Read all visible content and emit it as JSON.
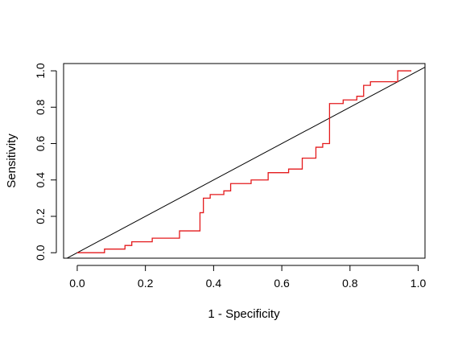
{
  "chart_data": {
    "type": "line",
    "title": "",
    "xlabel": "1 - Specificity",
    "ylabel": "Sensitivity",
    "xlim": [
      -0.04,
      1.02
    ],
    "ylim": [
      -0.03,
      1.04
    ],
    "x_ticks": [
      {
        "value": 0.0,
        "label": "0.0"
      },
      {
        "value": 0.2,
        "label": "0.2"
      },
      {
        "value": 0.4,
        "label": "0.4"
      },
      {
        "value": 0.6,
        "label": "0.6"
      },
      {
        "value": 0.8,
        "label": "0.8"
      },
      {
        "value": 1.0,
        "label": "1.0"
      }
    ],
    "y_ticks": [
      {
        "value": 0.0,
        "label": "0.0"
      },
      {
        "value": 0.2,
        "label": "0.2"
      },
      {
        "value": 0.4,
        "label": "0.4"
      },
      {
        "value": 0.6,
        "label": "0.6"
      },
      {
        "value": 0.8,
        "label": "0.8"
      },
      {
        "value": 1.0,
        "label": "1.0"
      }
    ],
    "grid": false,
    "series": [
      {
        "color": "#e41a1c",
        "style": "step",
        "x": [
          0.0,
          0.08,
          0.08,
          0.14,
          0.14,
          0.16,
          0.16,
          0.22,
          0.22,
          0.3,
          0.3,
          0.36,
          0.36,
          0.37,
          0.37,
          0.39,
          0.39,
          0.43,
          0.43,
          0.45,
          0.45,
          0.51,
          0.51,
          0.56,
          0.56,
          0.62,
          0.62,
          0.66,
          0.66,
          0.7,
          0.7,
          0.72,
          0.72,
          0.74,
          0.74,
          0.78,
          0.78,
          0.82,
          0.82,
          0.84,
          0.84,
          0.86,
          0.86,
          0.94,
          0.94,
          0.98
        ],
        "y": [
          0.0,
          0.0,
          0.02,
          0.02,
          0.04,
          0.04,
          0.06,
          0.06,
          0.08,
          0.08,
          0.12,
          0.12,
          0.22,
          0.22,
          0.3,
          0.3,
          0.32,
          0.32,
          0.34,
          0.34,
          0.38,
          0.38,
          0.4,
          0.4,
          0.44,
          0.44,
          0.46,
          0.46,
          0.52,
          0.52,
          0.58,
          0.58,
          0.6,
          0.6,
          0.82,
          0.82,
          0.84,
          0.84,
          0.86,
          0.86,
          0.92,
          0.92,
          0.94,
          0.94,
          1.0,
          1.0
        ]
      },
      {
        "color": "#000000",
        "style": "line",
        "x": [
          -0.04,
          1.02
        ],
        "y": [
          -0.04,
          1.02
        ]
      }
    ]
  }
}
